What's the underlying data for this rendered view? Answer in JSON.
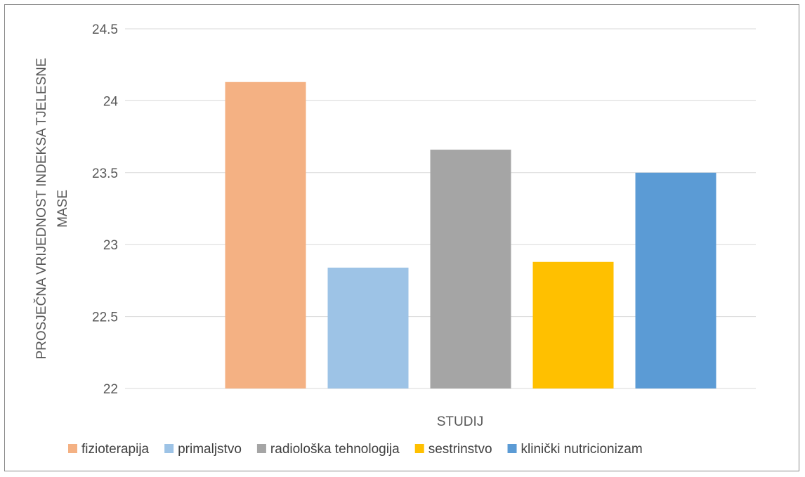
{
  "chart_data": {
    "type": "bar",
    "title": "",
    "xlabel": "STUDIJ",
    "ylabel_lines": [
      "PROSJEČNA VRIJEDNOST INDEKSA TJELESNE",
      "MASE"
    ],
    "ylim": [
      22,
      24.5
    ],
    "yticks": [
      "22",
      "22.5",
      "23",
      "23.5",
      "24",
      "24.5"
    ],
    "grid": true,
    "legend_position": "bottom",
    "series": [
      {
        "name": "fizioterapija",
        "value": 24.13,
        "color": "#F4B183"
      },
      {
        "name": "primaljstvo",
        "value": 22.84,
        "color": "#9DC3E6"
      },
      {
        "name": "radiološka tehnologija",
        "value": 23.66,
        "color": "#A5A5A5"
      },
      {
        "name": "sestrinstvo",
        "value": 22.88,
        "color": "#FFC000"
      },
      {
        "name": "klinički nutricionizam",
        "value": 23.5,
        "color": "#5B9BD5"
      }
    ]
  }
}
